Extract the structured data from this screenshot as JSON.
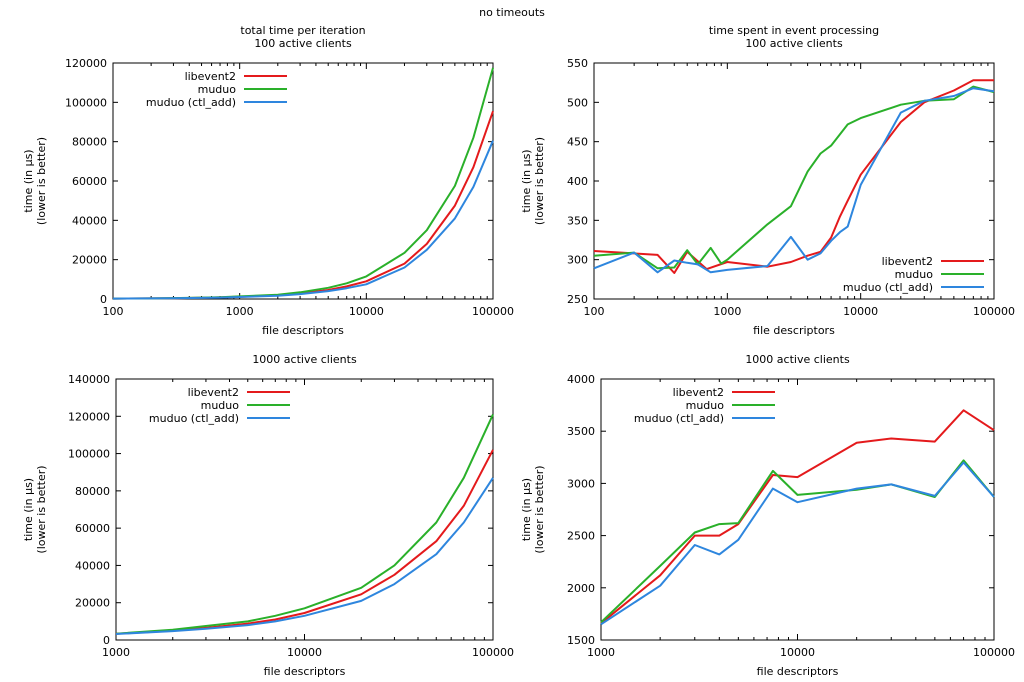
{
  "page_title": "no timeouts",
  "colors": {
    "libevent2": "#e41a1c",
    "muduo": "#2ab02a",
    "muduo_ctl_add": "#2e86de"
  },
  "chart_data": [
    {
      "type": "line",
      "title_lines": [
        "total time per iteration",
        "100 active clients"
      ],
      "xlabel": "file descriptors",
      "ylabel_lines": [
        "time (in µs)",
        "(lower is better)"
      ],
      "xscale": "log",
      "xlim": [
        100,
        100000
      ],
      "ylim": [
        0,
        120000
      ],
      "xticks": [
        100,
        1000,
        10000,
        100000
      ],
      "yticks": [
        0,
        20000,
        40000,
        60000,
        80000,
        100000,
        120000
      ],
      "legend_position": "top-left",
      "series": [
        {
          "name": "libevent2",
          "color": "#e41a1c",
          "x": [
            100,
            200,
            300,
            500,
            700,
            1000,
            2000,
            3000,
            5000,
            7000,
            10000,
            20000,
            30000,
            50000,
            70000,
            100000
          ],
          "y": [
            200,
            300,
            400,
            600,
            800,
            1100,
            1900,
            2800,
            4600,
            6400,
            9000,
            18000,
            28000,
            47500,
            67000,
            95500
          ]
        },
        {
          "name": "muduo",
          "color": "#2ab02a",
          "x": [
            100,
            200,
            300,
            500,
            700,
            1000,
            2000,
            3000,
            5000,
            7000,
            10000,
            20000,
            30000,
            50000,
            70000,
            100000
          ],
          "y": [
            200,
            300,
            450,
            700,
            900,
            1300,
            2200,
            3400,
            5700,
            8000,
            11500,
            23500,
            35000,
            57500,
            82000,
            117500
          ]
        },
        {
          "name": "muduo (ctl_add)",
          "color": "#2e86de",
          "x": [
            100,
            200,
            300,
            500,
            700,
            1000,
            2000,
            3000,
            5000,
            7000,
            10000,
            20000,
            30000,
            50000,
            70000,
            100000
          ],
          "y": [
            200,
            300,
            400,
            550,
            700,
            1000,
            1700,
            2500,
            4000,
            5500,
            7500,
            16000,
            25000,
            41000,
            57000,
            80500
          ]
        }
      ]
    },
    {
      "type": "line",
      "title_lines": [
        "time spent in event processing",
        "100 active clients"
      ],
      "xlabel": "file descriptors",
      "ylabel_lines": [
        "time (in µs)",
        "(lower is better)"
      ],
      "xscale": "log",
      "xlim": [
        100,
        100000
      ],
      "ylim": [
        250,
        550
      ],
      "xticks": [
        100,
        1000,
        10000,
        100000
      ],
      "yticks": [
        250,
        300,
        350,
        400,
        450,
        500,
        550
      ],
      "legend_position": "bottom-right",
      "series": [
        {
          "name": "libevent2",
          "color": "#e41a1c",
          "x": [
            100,
            200,
            300,
            400,
            500,
            700,
            1000,
            2000,
            3000,
            4000,
            5000,
            6000,
            7000,
            8000,
            10000,
            20000,
            30000,
            50000,
            70000,
            100000
          ],
          "y": [
            311,
            308,
            306,
            283,
            310,
            288,
            297,
            291,
            297,
            305,
            310,
            328,
            355,
            375,
            408,
            475,
            500,
            515,
            528,
            528
          ]
        },
        {
          "name": "muduo",
          "color": "#2ab02a",
          "x": [
            100,
            200,
            300,
            400,
            500,
            600,
            750,
            900,
            1000,
            2000,
            3000,
            4000,
            5000,
            6000,
            8000,
            10000,
            20000,
            30000,
            50000,
            70000,
            100000
          ],
          "y": [
            305,
            309,
            289,
            290,
            312,
            294,
            315,
            295,
            300,
            345,
            368,
            412,
            435,
            445,
            472,
            480,
            497,
            502,
            504,
            520,
            513
          ]
        },
        {
          "name": "muduo (ctl_add)",
          "color": "#2e86de",
          "x": [
            100,
            200,
            300,
            400,
            500,
            600,
            750,
            1000,
            2000,
            3000,
            4000,
            5000,
            6000,
            7000,
            8000,
            10000,
            20000,
            30000,
            50000,
            70000,
            100000
          ],
          "y": [
            289,
            309,
            284,
            299,
            296,
            294,
            284,
            287,
            292,
            329,
            300,
            308,
            324,
            335,
            342,
            395,
            487,
            502,
            508,
            518,
            514
          ]
        }
      ]
    },
    {
      "type": "line",
      "title_lines": [
        "1000 active clients"
      ],
      "xlabel": "file descriptors",
      "ylabel_lines": [
        "time (in µs)",
        "(lower is better)"
      ],
      "xscale": "log",
      "xlim": [
        1000,
        100000
      ],
      "ylim": [
        0,
        140000
      ],
      "xticks": [
        1000,
        10000,
        100000
      ],
      "yticks": [
        0,
        20000,
        40000,
        60000,
        80000,
        100000,
        120000,
        140000
      ],
      "legend_position": "top-left",
      "series": [
        {
          "name": "libevent2",
          "color": "#e41a1c",
          "x": [
            1000,
            2000,
            3000,
            5000,
            7000,
            10000,
            20000,
            30000,
            50000,
            70000,
            100000
          ],
          "y": [
            3300,
            5000,
            6500,
            8800,
            11000,
            14500,
            24500,
            35000,
            53000,
            72000,
            102000
          ]
        },
        {
          "name": "muduo",
          "color": "#2ab02a",
          "x": [
            1000,
            2000,
            3000,
            5000,
            7000,
            10000,
            20000,
            30000,
            50000,
            70000,
            100000
          ],
          "y": [
            3400,
            5500,
            7500,
            10000,
            13000,
            17000,
            28000,
            40000,
            63000,
            87000,
            121000
          ]
        },
        {
          "name": "muduo (ctl_add)",
          "color": "#2e86de",
          "x": [
            1000,
            2000,
            3000,
            5000,
            7000,
            10000,
            20000,
            30000,
            50000,
            70000,
            100000
          ],
          "y": [
            3200,
            4800,
            6000,
            8000,
            10000,
            13000,
            21000,
            30000,
            46000,
            63000,
            87000
          ]
        }
      ]
    },
    {
      "type": "line",
      "title_lines": [
        "1000 active clients"
      ],
      "xlabel": "file descriptors",
      "ylabel_lines": [
        "time (in µs)",
        "(lower is better)"
      ],
      "xscale": "log",
      "xlim": [
        1000,
        100000
      ],
      "ylim": [
        1500,
        4000
      ],
      "xticks": [
        1000,
        10000,
        100000
      ],
      "yticks": [
        1500,
        2000,
        2500,
        3000,
        3500,
        4000
      ],
      "legend_position": "top-left",
      "series": [
        {
          "name": "libevent2",
          "color": "#e41a1c",
          "x": [
            1000,
            2000,
            3000,
            4000,
            5000,
            7500,
            10000,
            20000,
            30000,
            50000,
            70000,
            100000
          ],
          "y": [
            1660,
            2120,
            2500,
            2500,
            2610,
            3080,
            3060,
            3390,
            3430,
            3400,
            3700,
            3510
          ]
        },
        {
          "name": "muduo",
          "color": "#2ab02a",
          "x": [
            1000,
            2000,
            3000,
            4000,
            5000,
            7500,
            10000,
            20000,
            30000,
            50000,
            70000,
            100000
          ],
          "y": [
            1670,
            2210,
            2530,
            2610,
            2620,
            3120,
            2890,
            2940,
            2990,
            2870,
            3220,
            2870
          ]
        },
        {
          "name": "muduo (ctl_add)",
          "color": "#2e86de",
          "x": [
            1000,
            2000,
            3000,
            4000,
            5000,
            7500,
            10000,
            20000,
            30000,
            50000,
            70000,
            100000
          ],
          "y": [
            1650,
            2020,
            2410,
            2320,
            2460,
            2950,
            2820,
            2950,
            2990,
            2880,
            3200,
            2870
          ]
        }
      ]
    }
  ]
}
